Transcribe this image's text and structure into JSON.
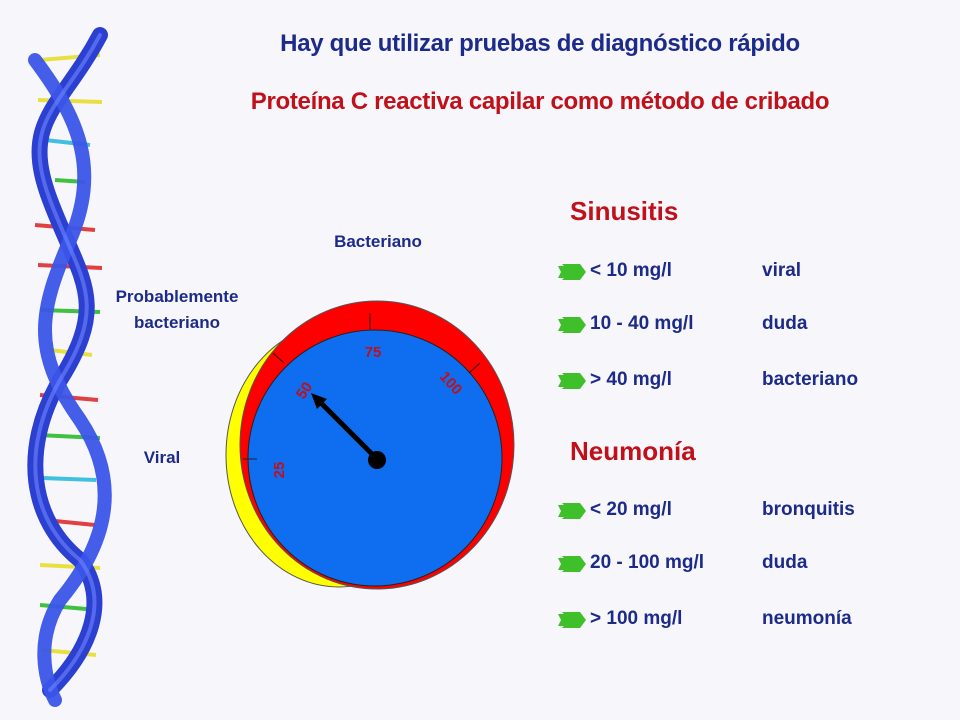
{
  "title": "Hay que utilizar pruebas de diagnóstico rápido",
  "subtitle": "Proteína C reactiva capilar como método de cribado",
  "gauge": {
    "label_bacterial": "Bacteriano",
    "label_probable_line1": "Probablemente",
    "label_probable_line2": "bacteriano",
    "label_viral": "Viral",
    "ticks": [
      "25",
      "50",
      "75",
      "100"
    ],
    "colors": {
      "viral": "#ffff00",
      "probable": "#ff0000",
      "face": "#0f6ef0",
      "needle": "#000000"
    }
  },
  "sinusitis": {
    "title": "Sinusitis",
    "rows": [
      {
        "range": "< 10 mg/l",
        "result": "viral"
      },
      {
        "range": "10 - 40 mg/l",
        "result": "duda"
      },
      {
        "range": "> 40 mg/l",
        "result": "bacteriano"
      }
    ]
  },
  "neumonia": {
    "title": "Neumonía",
    "rows": [
      {
        "range": "< 20 mg/l",
        "result": "bronquitis"
      },
      {
        "range": "20 - 100 mg/l",
        "result": "duda"
      },
      {
        "range": "> 100 mg/l",
        "result": "neumonía"
      }
    ]
  },
  "colors": {
    "title": "#1c2a8a",
    "accent": "#c0101a",
    "bullet": "#3fbf2a"
  }
}
